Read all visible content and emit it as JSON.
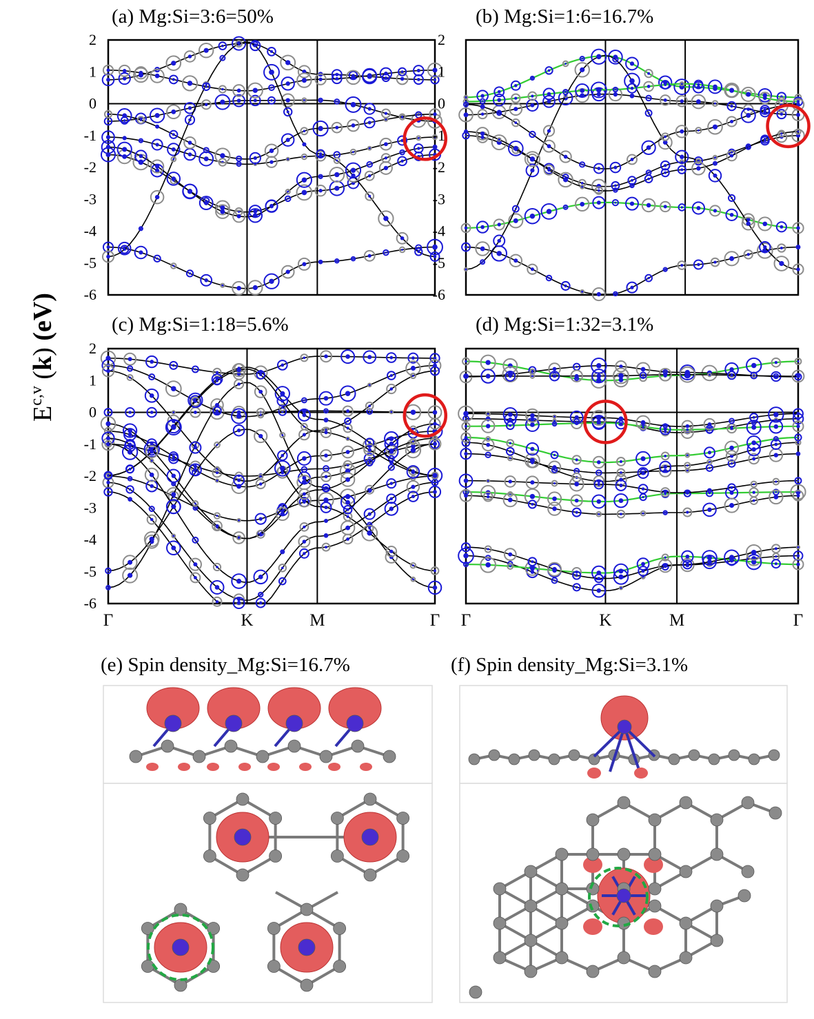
{
  "colors": {
    "band_line": "#000000",
    "si_projection": "#8c8c8c",
    "mg_projection": "#1a1ad6",
    "green_band": "#33cc33",
    "highlight_circle": "#e01a1a",
    "spin_isosurface": "#e35d5d",
    "si_atom": "#8a8a8a",
    "mg_atom": "#4a2ccf",
    "dashed_ring": "#22a844"
  },
  "y_axis": {
    "label_main": "E",
    "label_sup": "c,v",
    "label_k": "k",
    "label_unit": "(eV)"
  },
  "chart_data": [
    {
      "type": "scatter",
      "title": "(a) Mg:Si=3:6=50%",
      "ylim": [
        -6,
        2
      ],
      "yticks": [
        2,
        1,
        0,
        -1,
        -2,
        -3,
        -4,
        -5,
        -6
      ],
      "k_path": [
        "Γ",
        "K",
        "M",
        "Γ"
      ],
      "k_labels_shown": false,
      "highlight": {
        "k": "Γ (end)",
        "energy": -1.1
      },
      "bands_at_gamma": [
        0.75,
        -0.55,
        -1.05,
        -1.6,
        -4.5,
        -4.8
      ],
      "bands_at_K": [
        1.9,
        0.1,
        -1.9,
        -3.4,
        -5.8
      ]
    },
    {
      "type": "scatter",
      "title": "(b) Mg:Si=1:6=16.7%",
      "ylim": [
        -6,
        2
      ],
      "yticks": [
        2,
        1,
        0,
        -1,
        -2,
        -3,
        -4,
        -5,
        -6
      ],
      "k_path": [
        "Γ",
        "K",
        "M",
        "Γ"
      ],
      "k_labels_shown": false,
      "highlight": {
        "k": "Γ (end)",
        "energy": -0.7
      },
      "bands_at_gamma": [
        0.2,
        -0.35,
        -1.0,
        -3.9,
        -4.5,
        -5.2
      ],
      "bands_at_K": [
        1.5,
        0.3,
        -2.6,
        -3.1,
        -6.0
      ]
    },
    {
      "type": "scatter",
      "title": "(c) Mg:Si=1:18=5.6%",
      "ylim": [
        -6,
        2
      ],
      "yticks": [
        2,
        1,
        0,
        -1,
        -2,
        -3,
        -4,
        -5,
        -6
      ],
      "k_path": [
        "Γ",
        "K",
        "M",
        "Γ"
      ],
      "k_labels_shown": true,
      "highlight": {
        "k": "Γ (end)",
        "energy": -0.1
      },
      "bands_at_gamma": [
        1.7,
        0.0,
        -1.0,
        -2.0,
        -2.2,
        -5.5
      ],
      "bands_at_K": [
        1.2,
        0.0,
        -2.0,
        -3.4,
        -5.9
      ]
    },
    {
      "type": "scatter",
      "title": "(d) Mg:Si=1:32=3.1%",
      "ylim": [
        -6,
        2
      ],
      "yticks": [],
      "k_path": [
        "Γ",
        "K",
        "M",
        "Γ"
      ],
      "k_labels_shown": true,
      "highlight": {
        "k": "K",
        "energy": -0.3
      },
      "bands_at_gamma": [
        1.6,
        -0.2,
        -1.3,
        -2.5,
        -4.5
      ],
      "bands_at_K": [
        1.0,
        -0.3,
        -1.9,
        -2.8,
        -5.6
      ]
    }
  ],
  "spin_panels": [
    {
      "title": "(e) Spin density_Mg:Si=16.7%"
    },
    {
      "title": "(f) Spin density_Mg:Si=3.1%"
    }
  ]
}
